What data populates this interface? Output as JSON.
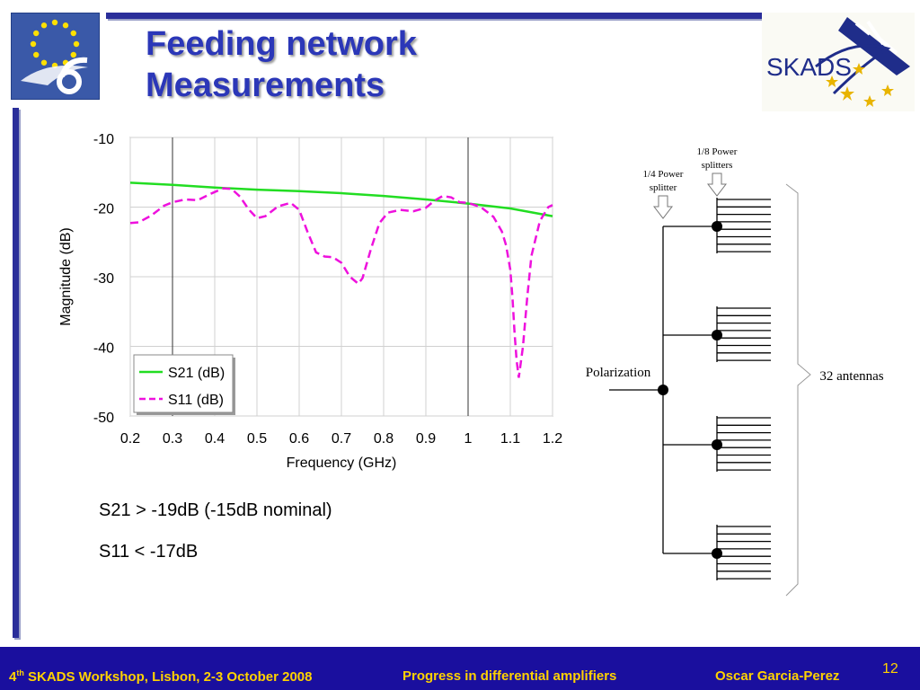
{
  "slide": {
    "title_line1": "Feeding network",
    "title_line2": "Measurements"
  },
  "logos": {
    "left_emblem": "eu-sixth-framework-logo",
    "right_text": "SKADS"
  },
  "chart_data": {
    "type": "line",
    "xlabel": "Frequency (GHz)",
    "ylabel": "Magnitude (dB)",
    "xlim": [
      0.2,
      1.2
    ],
    "ylim": [
      -50,
      -10
    ],
    "x_ticks": [
      "0.2",
      "0.3",
      "0.4",
      "0.5",
      "0.6",
      "0.7",
      "0.8",
      "0.9",
      "1",
      "1.1",
      "1.2"
    ],
    "y_ticks": [
      "-10",
      "-20",
      "-30",
      "-40",
      "-50"
    ],
    "vertical_markers": [
      0.3,
      1.0
    ],
    "legend_position": "bottom-left",
    "series": [
      {
        "name": "S21 (dB)",
        "color": "#22dd22",
        "style": "solid",
        "x": [
          0.2,
          0.3,
          0.4,
          0.5,
          0.6,
          0.7,
          0.8,
          0.9,
          1.0,
          1.1,
          1.2
        ],
        "y": [
          -16.5,
          -16.8,
          -17.2,
          -17.5,
          -17.7,
          -18.0,
          -18.4,
          -18.9,
          -19.5,
          -20.2,
          -21.3
        ]
      },
      {
        "name": "S11 (dB)",
        "color": "#ee11dd",
        "style": "dashed",
        "x": [
          0.2,
          0.22,
          0.25,
          0.28,
          0.3,
          0.33,
          0.36,
          0.39,
          0.42,
          0.44,
          0.46,
          0.48,
          0.5,
          0.52,
          0.55,
          0.58,
          0.6,
          0.62,
          0.64,
          0.66,
          0.68,
          0.7,
          0.72,
          0.74,
          0.75,
          0.77,
          0.79,
          0.81,
          0.84,
          0.87,
          0.9,
          0.92,
          0.94,
          0.96,
          0.98,
          1.0,
          1.03,
          1.06,
          1.08,
          1.09,
          1.1,
          1.105,
          1.11,
          1.115,
          1.12,
          1.13,
          1.14,
          1.15,
          1.17,
          1.19,
          1.2
        ],
        "y": [
          -22.3,
          -22.2,
          -21.2,
          -19.8,
          -19.3,
          -18.9,
          -19.0,
          -18.1,
          -17.3,
          -17.4,
          -18.5,
          -20.3,
          -21.6,
          -21.3,
          -19.9,
          -19.4,
          -20.4,
          -23.6,
          -26.5,
          -27.1,
          -27.2,
          -28.0,
          -30.0,
          -31.0,
          -30.2,
          -26.0,
          -22.3,
          -20.8,
          -20.4,
          -20.6,
          -20.1,
          -19.1,
          -18.4,
          -18.6,
          -19.3,
          -19.4,
          -20.0,
          -21.4,
          -23.5,
          -25.5,
          -29.0,
          -33.0,
          -38.0,
          -42.0,
          -44.5,
          -40.0,
          -33.0,
          -27.0,
          -22.0,
          -20.0,
          -19.7
        ]
      }
    ]
  },
  "diagram": {
    "label_quarter": [
      "1/4 Power",
      "splitter"
    ],
    "label_eighth": [
      "1/8 Power",
      "splitters"
    ],
    "label_polarization": "Polarization",
    "label_antennas": "32 antennas"
  },
  "bullets": [
    "S21 > -19dB (-15dB nominal)",
    "S11 < -17dB"
  ],
  "footer": {
    "workshop_num": "4",
    "workshop_sup": "th",
    "workshop_rest": " SKADS Workshop, Lisbon, 2-3 October 2008",
    "talk_title": "Progress in differential amplifiers",
    "author": "Oscar Garcia-Perez",
    "page_number": "12"
  }
}
